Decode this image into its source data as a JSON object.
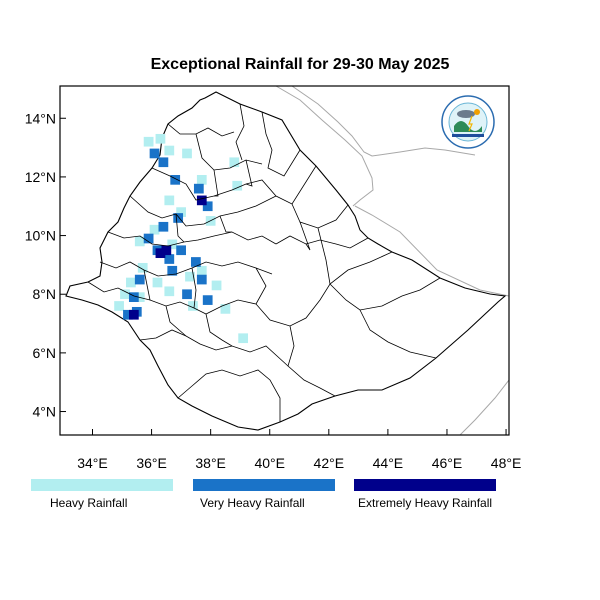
{
  "title": "Exceptional Rainfall for 29-30 May 2025",
  "axes": {
    "x_ticks": [
      "34°E",
      "36°E",
      "38°E",
      "40°E",
      "42°E",
      "44°E",
      "46°E",
      "48°E"
    ],
    "x_values": [
      34,
      36,
      38,
      40,
      42,
      44,
      46,
      48
    ],
    "y_ticks": [
      "4°N",
      "6°N",
      "8°N",
      "10°N",
      "12°N",
      "14°N"
    ],
    "y_values": [
      4,
      6,
      8,
      10,
      12,
      14
    ],
    "lon_range": [
      32.9,
      48.1
    ],
    "lat_range": [
      3.2,
      15.1
    ]
  },
  "legend": [
    {
      "label": "Heavy Rainfall",
      "color": "#b2eef0"
    },
    {
      "label": "Very Heavy Rainfall",
      "color": "#1a73c8"
    },
    {
      "label": "Extremely Heavy Rainfall",
      "color": "#00008b"
    }
  ],
  "logo": {
    "name": "ethiopian-meteorology-institute-logo"
  },
  "rain_cells": {
    "heavy": [
      [
        35.9,
        13.2
      ],
      [
        36.3,
        13.3
      ],
      [
        36.6,
        12.9
      ],
      [
        37.2,
        12.8
      ],
      [
        38.8,
        12.5
      ],
      [
        38.9,
        11.7
      ],
      [
        37.7,
        11.9
      ],
      [
        36.6,
        11.2
      ],
      [
        37.0,
        10.8
      ],
      [
        36.1,
        10.2
      ],
      [
        35.6,
        9.8
      ],
      [
        35.7,
        8.9
      ],
      [
        35.3,
        8.4
      ],
      [
        35.1,
        8.0
      ],
      [
        34.9,
        7.6
      ],
      [
        35.6,
        7.9
      ],
      [
        36.2,
        8.4
      ],
      [
        36.6,
        8.1
      ],
      [
        37.3,
        8.6
      ],
      [
        37.7,
        8.8
      ],
      [
        38.2,
        8.3
      ],
      [
        37.4,
        7.6
      ],
      [
        38.5,
        7.5
      ],
      [
        39.1,
        6.5
      ],
      [
        36.7,
        9.7
      ],
      [
        38.0,
        10.5
      ]
    ],
    "very_heavy": [
      [
        36.1,
        12.8
      ],
      [
        36.4,
        12.5
      ],
      [
        36.8,
        11.9
      ],
      [
        37.6,
        11.6
      ],
      [
        37.9,
        11.0
      ],
      [
        36.4,
        10.3
      ],
      [
        35.9,
        9.9
      ],
      [
        36.2,
        9.5
      ],
      [
        36.6,
        9.2
      ],
      [
        37.0,
        9.5
      ],
      [
        37.5,
        9.1
      ],
      [
        37.7,
        8.5
      ],
      [
        37.2,
        8.0
      ],
      [
        37.9,
        7.8
      ],
      [
        35.6,
        8.5
      ],
      [
        35.4,
        7.9
      ],
      [
        35.5,
        7.4
      ],
      [
        35.2,
        7.3
      ],
      [
        36.9,
        10.6
      ],
      [
        36.7,
        8.8
      ]
    ],
    "extreme": [
      [
        36.3,
        9.4
      ],
      [
        36.5,
        9.5
      ],
      [
        37.7,
        11.2
      ],
      [
        35.4,
        7.3
      ]
    ]
  }
}
